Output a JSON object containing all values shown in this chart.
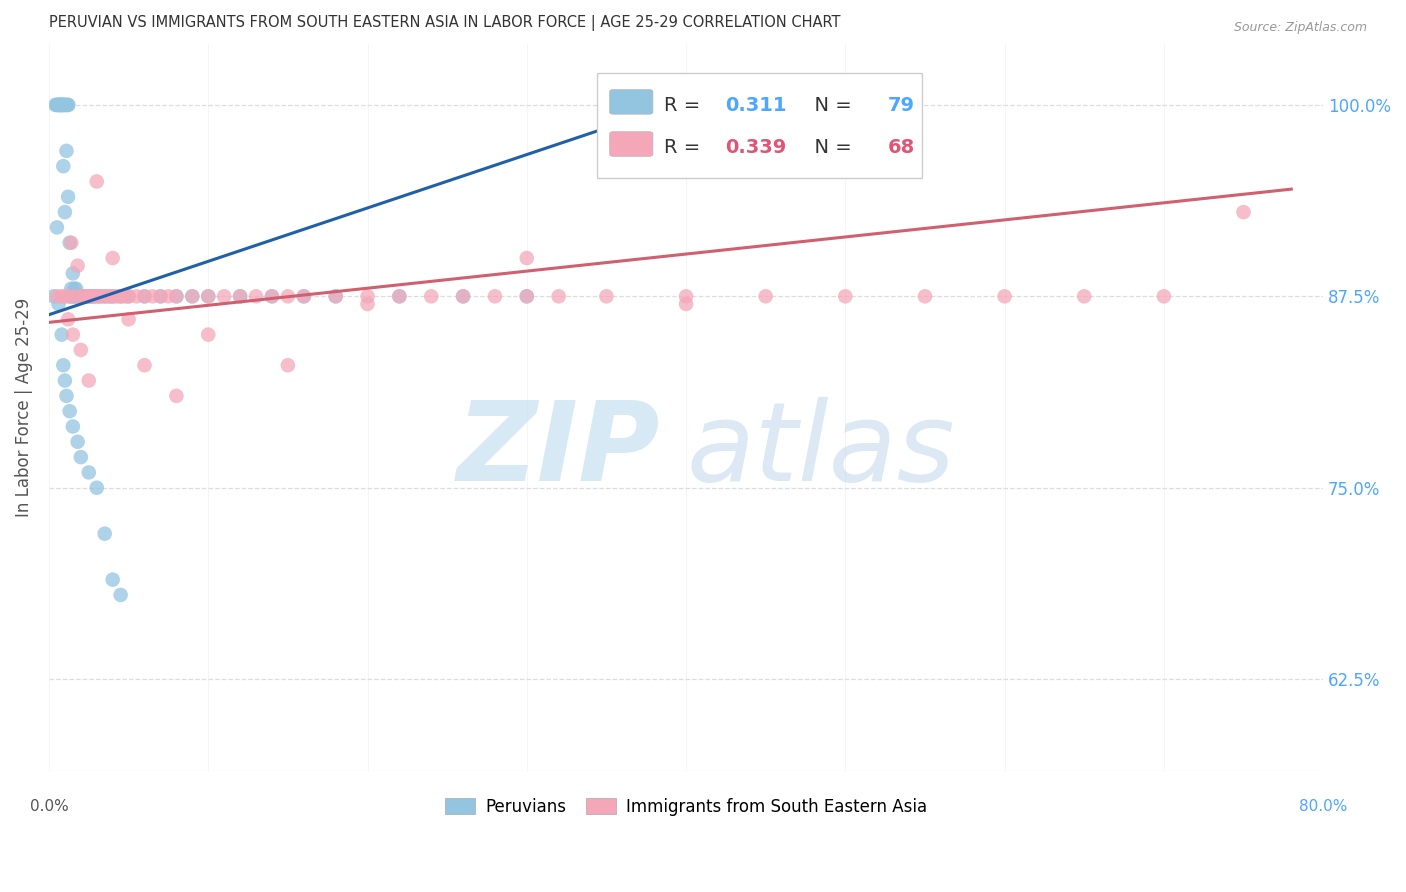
{
  "title": "PERUVIAN VS IMMIGRANTS FROM SOUTH EASTERN ASIA IN LABOR FORCE | AGE 25-29 CORRELATION CHART",
  "source": "Source: ZipAtlas.com",
  "ylabel": "In Labor Force | Age 25-29",
  "ytick_vals": [
    0.625,
    0.75,
    0.875,
    1.0
  ],
  "ytick_labels": [
    "62.5%",
    "75.0%",
    "87.5%",
    "100.0%"
  ],
  "xlim": [
    0.0,
    0.8
  ],
  "ylim": [
    0.565,
    1.04
  ],
  "blue_R": "0.311",
  "blue_N": "79",
  "pink_R": "0.339",
  "pink_N": "68",
  "blue_color": "#93c4e0",
  "pink_color": "#f4a7b9",
  "blue_line_color": "#2060a8",
  "pink_line_color": "#d06070",
  "watermark_zip": "ZIP",
  "watermark_atlas": "atlas",
  "legend_label_blue": "Peruvians",
  "legend_label_pink": "Immigrants from South Eastern Asia",
  "title_color": "#333333",
  "source_color": "#999999",
  "axis_label_color": "#555555",
  "right_tick_color": "#4da6ff",
  "xlabel_color": "#555555",
  "background_color": "#ffffff",
  "blue_line_x0": 0.0,
  "blue_line_y0": 0.863,
  "blue_line_x1": 0.35,
  "blue_line_y1": 0.985,
  "pink_line_x0": 0.0,
  "pink_line_y0": 0.858,
  "pink_line_x1": 0.78,
  "pink_line_y1": 0.945,
  "blue_x": [
    0.003,
    0.004,
    0.005,
    0.005,
    0.006,
    0.006,
    0.007,
    0.007,
    0.007,
    0.008,
    0.008,
    0.008,
    0.009,
    0.009,
    0.009,
    0.01,
    0.01,
    0.01,
    0.011,
    0.011,
    0.012,
    0.012,
    0.012,
    0.013,
    0.013,
    0.014,
    0.014,
    0.015,
    0.015,
    0.016,
    0.016,
    0.017,
    0.017,
    0.018,
    0.019,
    0.02,
    0.02,
    0.021,
    0.022,
    0.023,
    0.024,
    0.025,
    0.026,
    0.027,
    0.028,
    0.03,
    0.032,
    0.035,
    0.038,
    0.04,
    0.045,
    0.05,
    0.06,
    0.07,
    0.08,
    0.09,
    0.1,
    0.12,
    0.14,
    0.16,
    0.18,
    0.22,
    0.26,
    0.3,
    0.005,
    0.006,
    0.008,
    0.009,
    0.01,
    0.011,
    0.013,
    0.015,
    0.018,
    0.02,
    0.025,
    0.03,
    0.035,
    0.04,
    0.045
  ],
  "blue_y": [
    0.875,
    1.0,
    1.0,
    1.0,
    1.0,
    1.0,
    1.0,
    1.0,
    1.0,
    1.0,
    1.0,
    1.0,
    1.0,
    1.0,
    0.96,
    1.0,
    1.0,
    0.93,
    1.0,
    0.97,
    1.0,
    1.0,
    0.94,
    0.875,
    0.91,
    0.875,
    0.88,
    0.875,
    0.89,
    0.875,
    0.88,
    0.875,
    0.88,
    0.875,
    0.875,
    0.875,
    0.875,
    0.875,
    0.875,
    0.875,
    0.875,
    0.875,
    0.875,
    0.875,
    0.875,
    0.875,
    0.875,
    0.875,
    0.875,
    0.875,
    0.875,
    0.875,
    0.875,
    0.875,
    0.875,
    0.875,
    0.875,
    0.875,
    0.875,
    0.875,
    0.875,
    0.875,
    0.875,
    0.875,
    0.92,
    0.87,
    0.85,
    0.83,
    0.82,
    0.81,
    0.8,
    0.79,
    0.78,
    0.77,
    0.76,
    0.75,
    0.72,
    0.69,
    0.68
  ],
  "pink_x": [
    0.005,
    0.008,
    0.01,
    0.012,
    0.014,
    0.016,
    0.018,
    0.02,
    0.022,
    0.024,
    0.026,
    0.028,
    0.03,
    0.032,
    0.034,
    0.036,
    0.038,
    0.04,
    0.042,
    0.044,
    0.046,
    0.048,
    0.05,
    0.055,
    0.06,
    0.065,
    0.07,
    0.075,
    0.08,
    0.09,
    0.1,
    0.11,
    0.12,
    0.13,
    0.14,
    0.15,
    0.16,
    0.18,
    0.2,
    0.22,
    0.24,
    0.26,
    0.28,
    0.3,
    0.32,
    0.35,
    0.4,
    0.45,
    0.5,
    0.55,
    0.6,
    0.65,
    0.7,
    0.75,
    0.012,
    0.015,
    0.02,
    0.025,
    0.03,
    0.04,
    0.05,
    0.06,
    0.08,
    0.1,
    0.15,
    0.2,
    0.3,
    0.4
  ],
  "pink_y": [
    0.875,
    0.875,
    0.875,
    0.875,
    0.91,
    0.875,
    0.895,
    0.875,
    0.875,
    0.875,
    0.875,
    0.875,
    0.875,
    0.875,
    0.875,
    0.875,
    0.875,
    0.875,
    0.875,
    0.875,
    0.875,
    0.875,
    0.875,
    0.875,
    0.875,
    0.875,
    0.875,
    0.875,
    0.875,
    0.875,
    0.875,
    0.875,
    0.875,
    0.875,
    0.875,
    0.875,
    0.875,
    0.875,
    0.875,
    0.875,
    0.875,
    0.875,
    0.875,
    0.875,
    0.875,
    0.875,
    0.875,
    0.875,
    0.875,
    0.875,
    0.875,
    0.875,
    0.875,
    0.93,
    0.86,
    0.85,
    0.84,
    0.82,
    0.95,
    0.9,
    0.86,
    0.83,
    0.81,
    0.85,
    0.83,
    0.87,
    0.9,
    0.87
  ]
}
